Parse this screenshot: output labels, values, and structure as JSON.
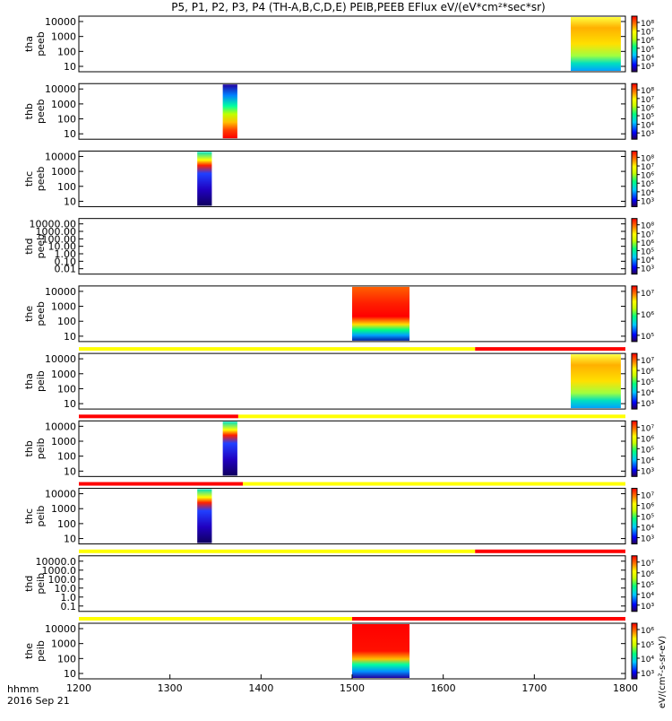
{
  "chart_data": {
    "type": "heatmap",
    "title": "P5, P1, P2, P3, P4 (TH-A,B,C,D,E) PEIB,PEEB EFlux eV/(eV*cm²*sec*sr)",
    "xlabel_line1": "hhmm",
    "xlabel_line2": "2016 Sep 21",
    "xlim": [
      1200,
      1800
    ],
    "x_ticks": [
      "1200",
      "1300",
      "1400",
      "1500",
      "1600",
      "1700",
      "1800"
    ],
    "x_tick_values": [
      1200,
      1300,
      1400,
      1500,
      1600,
      1700,
      1800
    ],
    "colorbar_unit": "eV/(cm²-s-sr-eV)",
    "panels": [
      {
        "id": "tha-peeb",
        "label1": "tha",
        "label2": "peeb",
        "yticks": [
          "10000",
          "1000",
          "100",
          "10"
        ],
        "cbar_ticks": [
          "10⁸",
          "10⁷",
          "10⁶",
          "10⁵",
          "10⁴",
          "10³"
        ],
        "blocks": [
          {
            "x0": 1740,
            "x1": 1795,
            "style": "warm-top"
          }
        ],
        "bar": null
      },
      {
        "id": "thb-peeb",
        "label1": "thb",
        "label2": "peeb",
        "yticks": [
          "10000",
          "1000",
          "100",
          "10"
        ],
        "cbar_ticks": [
          "10⁸",
          "10⁷",
          "10⁶",
          "10⁵",
          "10⁴",
          "10³"
        ],
        "blocks": [
          {
            "x0": 1358,
            "x1": 1374,
            "style": "inverted"
          }
        ],
        "bar": null
      },
      {
        "id": "thc-peeb",
        "label1": "thc",
        "label2": "peeb",
        "yticks": [
          "10000",
          "1000",
          "100",
          "10"
        ],
        "cbar_ticks": [
          "10⁸",
          "10⁷",
          "10⁶",
          "10⁵",
          "10⁴",
          "10³"
        ],
        "blocks": [
          {
            "x0": 1330,
            "x1": 1346,
            "style": "cool-top"
          }
        ],
        "bar": null
      },
      {
        "id": "thd-peeb",
        "label1": "thd",
        "label2": "peeb",
        "yticks": [
          "10000.00",
          "1000.00",
          "100.00",
          "10.00",
          "1.00",
          "0.10",
          "0.01"
        ],
        "cbar_ticks": [
          "10⁸",
          "10⁷",
          "10⁶",
          "10⁵",
          "10⁴",
          "10³"
        ],
        "blocks": [],
        "bar": null
      },
      {
        "id": "the-peeb",
        "label1": "the",
        "label2": "peeb",
        "yticks": [
          "10000",
          "1000",
          "100",
          "10"
        ],
        "cbar_ticks": [
          "10⁷",
          "10⁶",
          "10⁵"
        ],
        "blocks": [
          {
            "x0": 1500,
            "x1": 1563,
            "style": "hot"
          }
        ],
        "bar": null
      },
      {
        "id": "tha-peib",
        "label1": "tha",
        "label2": "peib",
        "yticks": [
          "10000",
          "1000",
          "100",
          "10"
        ],
        "cbar_ticks": [
          "10⁷",
          "10⁶",
          "10⁵",
          "10⁴",
          "10³"
        ],
        "blocks": [
          {
            "x0": 1740,
            "x1": 1795,
            "style": "warm-top"
          }
        ],
        "bar": {
          "switch_x": 1635,
          "left": "yellow",
          "right": "red"
        }
      },
      {
        "id": "thb-peib",
        "label1": "thb",
        "label2": "peib",
        "yticks": [
          "10000",
          "1000",
          "100",
          "10"
        ],
        "cbar_ticks": [
          "10⁷",
          "10⁶",
          "10⁵",
          "10⁴",
          "10³"
        ],
        "blocks": [
          {
            "x0": 1358,
            "x1": 1374,
            "style": "cool-top"
          }
        ],
        "bar": {
          "switch_x": 1375,
          "left": "red",
          "right": "yellow"
        }
      },
      {
        "id": "thc-peib",
        "label1": "thc",
        "label2": "peib",
        "yticks": [
          "10000",
          "1000",
          "100",
          "10"
        ],
        "cbar_ticks": [
          "10⁷",
          "10⁶",
          "10⁵",
          "10⁴",
          "10³"
        ],
        "blocks": [
          {
            "x0": 1330,
            "x1": 1346,
            "style": "cool-top"
          }
        ],
        "bar": {
          "switch_x": 1380,
          "left": "red",
          "right": "yellow"
        }
      },
      {
        "id": "thd-peib",
        "label1": "thd",
        "label2": "peib",
        "yticks": [
          "10000.0",
          "1000.0",
          "100.0",
          "10.0",
          "1.0",
          "0.1"
        ],
        "cbar_ticks": [
          "10⁷",
          "10⁶",
          "10⁵",
          "10⁴",
          "10³"
        ],
        "blocks": [],
        "bar": {
          "switch_x": 1635,
          "left": "yellow",
          "right": "red"
        }
      },
      {
        "id": "the-peib",
        "label1": "the",
        "label2": "peib",
        "yticks": [
          "10000",
          "1000",
          "100",
          "10"
        ],
        "cbar_ticks": [
          "10⁶",
          "10⁵",
          "10⁴",
          "10³"
        ],
        "blocks": [
          {
            "x0": 1500,
            "x1": 1563,
            "style": "hot-cool-bottom"
          }
        ],
        "bar": {
          "switch_x": 1500,
          "left": "yellow",
          "right": "red"
        }
      }
    ]
  },
  "colors": {
    "bar_yellow": "#ffff00",
    "bar_red": "#ff0000",
    "frame": "#000000"
  }
}
